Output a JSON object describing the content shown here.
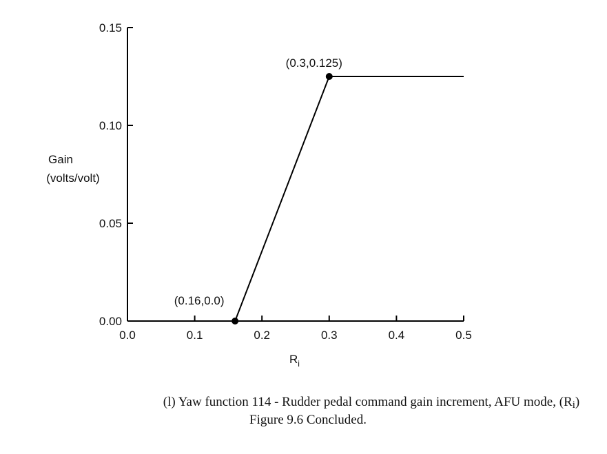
{
  "chart_data": {
    "type": "line",
    "x": [
      0,
      0.16,
      0.3,
      0.5
    ],
    "series": [
      {
        "name": "Gain",
        "color": "#000000",
        "values": [
          0,
          0,
          0.125,
          0.125
        ]
      }
    ],
    "xlim": [
      0,
      0.5
    ],
    "ylim": [
      0,
      0.15
    ],
    "xticks": [
      {
        "value": 0,
        "label": "0.0"
      },
      {
        "value": 0.1,
        "label": "0.1"
      },
      {
        "value": 0.2,
        "label": "0.2"
      },
      {
        "value": 0.3,
        "label": "0.3"
      },
      {
        "value": 0.4,
        "label": "0.4"
      },
      {
        "value": 0.5,
        "label": "0.5"
      }
    ],
    "yticks": [
      {
        "value": 0,
        "label": "0.00"
      },
      {
        "value": 0.05,
        "label": "0.05"
      },
      {
        "value": 0.1,
        "label": "0.10"
      },
      {
        "value": 0.15,
        "label": "0.15"
      }
    ],
    "x_label": [
      "R",
      "i"
    ],
    "y_label": [
      "Gain",
      "(volts/volt)"
    ],
    "annotations": [
      {
        "text": "(0.16,0.0)",
        "x": 0.16,
        "y": 0
      },
      {
        "text": "(0.3,0.125)",
        "x": 0.3,
        "y": 0.125
      }
    ],
    "caption": [
      "(l)  Yaw function 114 - Rudder pedal command gain increment, AFU mode, (R",
      "i",
      ")"
    ],
    "figure_label": "Figure 9.6  Concluded."
  }
}
